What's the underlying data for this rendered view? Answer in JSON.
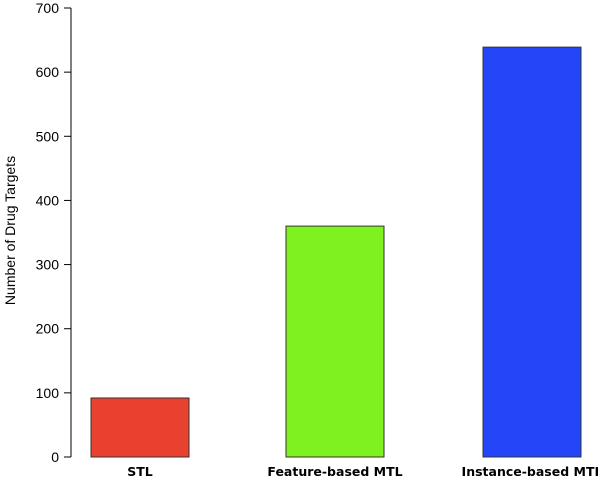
{
  "chart_data": {
    "type": "bar",
    "categories": [
      "STL",
      "Feature-based MTL",
      "Instance-based MTL"
    ],
    "values": [
      92,
      360,
      639
    ],
    "colors": [
      "#e8412f",
      "#7ef21e",
      "#2346f9"
    ],
    "bar_outline_color": "#333333",
    "title": "",
    "xlabel": "",
    "ylabel": "Number of Drug Targets",
    "ylim": [
      0,
      700
    ],
    "yticks": [
      0,
      100,
      200,
      300,
      400,
      500,
      600,
      700
    ],
    "grid": false,
    "legend": "none"
  }
}
